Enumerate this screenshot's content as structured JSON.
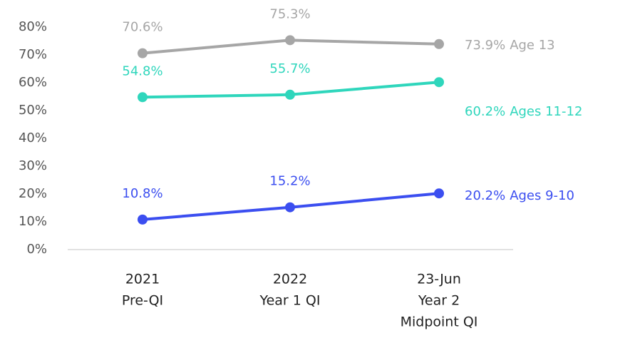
{
  "chart_data": {
    "type": "line",
    "categories": [
      [
        "2021",
        "Pre-QI"
      ],
      [
        "2022",
        "Year 1 QI"
      ],
      [
        "23-Jun",
        "Year 2",
        "Midpoint QI"
      ]
    ],
    "series": [
      {
        "name": "Age 13",
        "color": "#a6a6a6",
        "values": [
          70.6,
          75.3,
          73.9
        ],
        "value_labels": [
          "70.6%",
          "75.3%",
          "73.9%"
        ]
      },
      {
        "name": "Ages 11-12",
        "color": "#2fd6bc",
        "values": [
          54.8,
          55.7,
          60.2
        ],
        "value_labels": [
          "54.8%",
          "55.7%",
          "60.2%"
        ]
      },
      {
        "name": "Ages 9-10",
        "color": "#3b4ef0",
        "values": [
          10.8,
          15.2,
          20.2
        ],
        "value_labels": [
          "10.8%",
          "15.2%",
          "20.2%"
        ]
      }
    ],
    "ylim": [
      0,
      80
    ],
    "yticks": [
      {
        "value": 0,
        "label": "0%"
      },
      {
        "value": 10,
        "label": "10%"
      },
      {
        "value": 20,
        "label": "20%"
      },
      {
        "value": 30,
        "label": "30%"
      },
      {
        "value": 40,
        "label": "40%"
      },
      {
        "value": 50,
        "label": "50%"
      },
      {
        "value": 60,
        "label": "60%"
      },
      {
        "value": 70,
        "label": "70%"
      },
      {
        "value": 80,
        "label": "80%"
      }
    ]
  }
}
